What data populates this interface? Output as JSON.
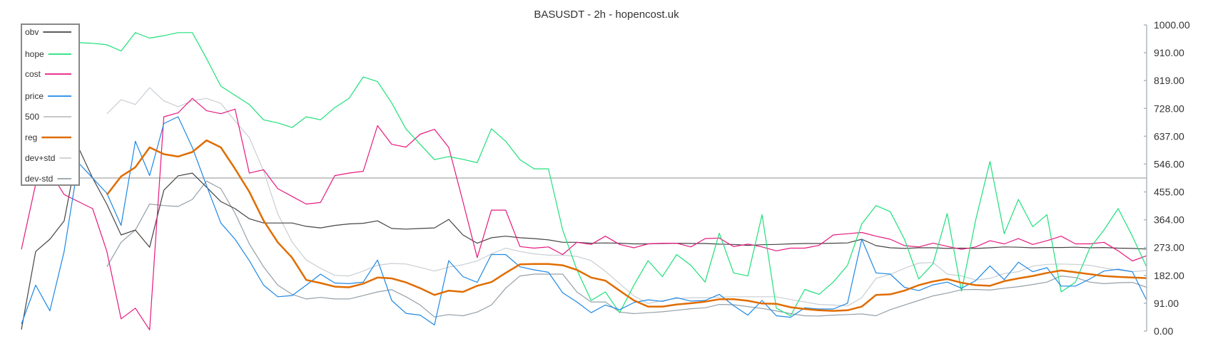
{
  "chart_data": {
    "type": "line",
    "title": "BASUSDT - 2h - hopencost.uk",
    "ylim": [
      0,
      1000
    ],
    "y_axis_position": "right",
    "y_ticks": [
      "0.00",
      "91.00",
      "182.00",
      "273.00",
      "364.00",
      "455.00",
      "546.00",
      "637.00",
      "728.00",
      "819.00",
      "910.00",
      "1000.00"
    ],
    "grid": false,
    "legend_position": "top-left",
    "series": [
      {
        "name": "obv",
        "color": "#444444",
        "values": [
          5,
          260,
          300,
          360,
          600,
          500,
          414,
          314,
          330,
          274,
          460,
          507,
          516,
          470,
          423,
          400,
          367,
          353,
          353,
          353,
          342,
          337,
          345,
          350,
          352,
          360,
          335,
          333,
          335,
          337,
          365,
          314,
          287,
          305,
          310,
          305,
          302,
          298,
          290,
          290,
          287,
          288,
          287,
          285,
          285,
          286,
          287,
          286,
          286,
          284,
          283,
          280,
          282,
          283,
          285,
          286,
          286,
          287,
          288,
          300,
          279,
          272,
          270,
          272,
          272,
          270,
          271,
          270,
          272,
          275,
          274,
          272,
          273,
          273,
          274,
          272,
          273,
          271,
          270,
          268
        ]
      },
      {
        "name": "hope",
        "color": "#1fe07a",
        "values": [
          null,
          null,
          null,
          null,
          942,
          940,
          935,
          915,
          975,
          957,
          965,
          975,
          975,
          890,
          800,
          770,
          740,
          690,
          680,
          665,
          700,
          690,
          730,
          760,
          830,
          815,
          745,
          660,
          610,
          560,
          570,
          561,
          550,
          661,
          620,
          560,
          530,
          530,
          330,
          200,
          100,
          128,
          60,
          150,
          230,
          178,
          250,
          215,
          160,
          320,
          190,
          180,
          380,
          75,
          50,
          136,
          120,
          160,
          215,
          350,
          410,
          390,
          300,
          170,
          220,
          384,
          130,
          364,
          554,
          318,
          430,
          341,
          380,
          128,
          160,
          270,
          330,
          400,
          310,
          209
        ]
      },
      {
        "name": "cost",
        "color": "#e6197f",
        "values": [
          267,
          480,
          520,
          446,
          423,
          400,
          260,
          40,
          75,
          4,
          700,
          713,
          760,
          720,
          710,
          725,
          516,
          527,
          465,
          440,
          415,
          420,
          508,
          516,
          522,
          671,
          610,
          601,
          643,
          659,
          600,
          423,
          240,
          395,
          395,
          276,
          271,
          275,
          250,
          290,
          283,
          310,
          283,
          272,
          285,
          287,
          287,
          275,
          302,
          304,
          276,
          284,
          275,
          262,
          271,
          271,
          280,
          314,
          318,
          322,
          310,
          300,
          279,
          275,
          287,
          277,
          267,
          275,
          295,
          285,
          302,
          283,
          295,
          310,
          285,
          285,
          290,
          262,
          229,
          246
        ]
      },
      {
        "name": "price",
        "color": "#1e88e5",
        "values": [
          23,
          150,
          66,
          260,
          550,
          500,
          450,
          345,
          620,
          508,
          678,
          700,
          600,
          475,
          353,
          300,
          230,
          150,
          112,
          116,
          150,
          186,
          157,
          155,
          160,
          232,
          100,
          58,
          52,
          20,
          230,
          178,
          159,
          250,
          250,
          210,
          200,
          192,
          125,
          95,
          60,
          85,
          70,
          93,
          102,
          97,
          109,
          98,
          100,
          120,
          83,
          52,
          100,
          50,
          45,
          76,
          72,
          72,
          91,
          300,
          190,
          186,
          143,
          132,
          151,
          160,
          140,
          165,
          213,
          168,
          225,
          194,
          207,
          147,
          147,
          170,
          196,
          202,
          194,
          101
        ]
      },
      {
        "name": "500",
        "color": "#c0c0c0",
        "constant": 500
      },
      {
        "name": "reg",
        "color": "#e06c00",
        "values": [
          null,
          null,
          null,
          null,
          null,
          null,
          445,
          505,
          535,
          600,
          578,
          570,
          585,
          623,
          600,
          530,
          455,
          361,
          290,
          240,
          167,
          157,
          145,
          143,
          155,
          175,
          172,
          159,
          140,
          118,
          132,
          128,
          148,
          160,
          190,
          218,
          219,
          219,
          215,
          200,
          175,
          165,
          132,
          100,
          80,
          80,
          87,
          91,
          96,
          104,
          104,
          99,
          90,
          89,
          78,
          72,
          68,
          66,
          68,
          80,
          118,
          120,
          132,
          150,
          162,
          170,
          158,
          150,
          148,
          163,
          172,
          180,
          190,
          198,
          192,
          186,
          180,
          177,
          175,
          173
        ]
      },
      {
        "name": "dev+std",
        "color": "#c9ced3",
        "values": [
          null,
          null,
          null,
          null,
          null,
          null,
          710,
          756,
          740,
          795,
          752,
          733,
          752,
          760,
          744,
          686,
          632,
          523,
          383,
          291,
          232,
          205,
          182,
          180,
          196,
          215,
          221,
          219,
          208,
          196,
          209,
          217,
          229,
          252,
          271,
          260,
          252,
          248,
          248,
          244,
          230,
          195,
          155,
          115,
          90,
          100,
          106,
          109,
          109,
          111,
          112,
          112,
          112,
          112,
          103,
          95,
          87,
          85,
          82,
          109,
          172,
          185,
          205,
          222,
          224,
          186,
          180,
          167,
          172,
          188,
          194,
          212,
          218,
          219,
          218,
          215,
          206,
          199,
          194,
          198
        ]
      },
      {
        "name": "dev-std",
        "color": "#95a0a8",
        "values": [
          null,
          null,
          null,
          null,
          null,
          null,
          210,
          290,
          330,
          415,
          410,
          407,
          430,
          490,
          465,
          385,
          285,
          210,
          150,
          120,
          105,
          110,
          105,
          105,
          116,
          128,
          135,
          112,
          85,
          46,
          54,
          50,
          62,
          85,
          140,
          180,
          186,
          186,
          186,
          128,
          95,
          95,
          62,
          57,
          60,
          63,
          68,
          73,
          76,
          87,
          86,
          80,
          74,
          66,
          57,
          50,
          49,
          52,
          54,
          56,
          50,
          70,
          85,
          100,
          115,
          124,
          135,
          136,
          134,
          140,
          145,
          152,
          160,
          180,
          175,
          160,
          155,
          158,
          159,
          143
        ]
      }
    ]
  }
}
